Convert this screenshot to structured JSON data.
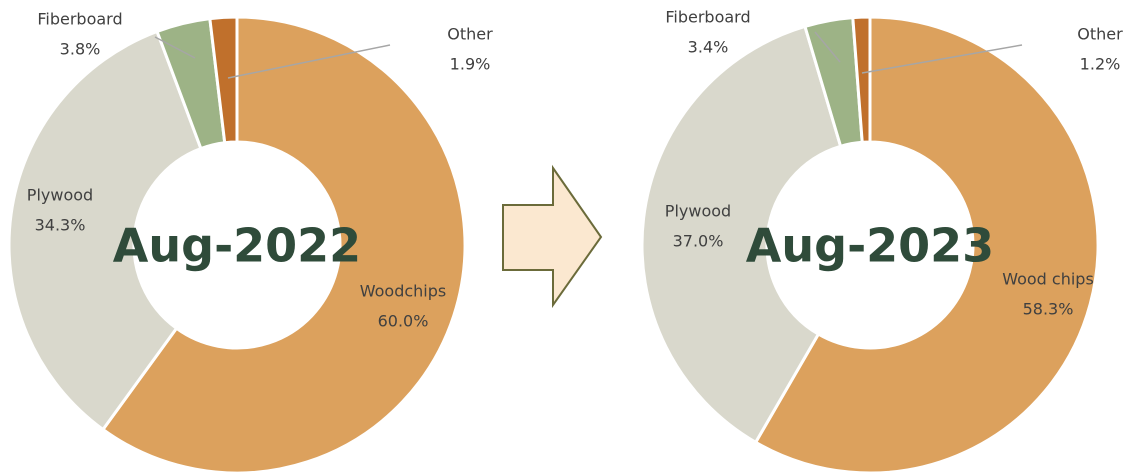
{
  "chart_data": [
    {
      "type": "pie",
      "title": "Aug-2022",
      "categories": [
        "Woodchips",
        "Plywood",
        "Fiberboard",
        "Other"
      ],
      "values": [
        60.0,
        34.3,
        3.8,
        1.9
      ],
      "value_labels": [
        "60.0%",
        "34.3%",
        "3.8%",
        "1.9%"
      ],
      "colors": [
        "#dca15d",
        "#d9d8cc",
        "#9db386",
        "#c0702c"
      ]
    },
    {
      "type": "pie",
      "title": "Aug-2023",
      "categories": [
        "Wood chips",
        "Plywood",
        "Fiberboard",
        "Other"
      ],
      "values": [
        58.3,
        37.0,
        3.4,
        1.2
      ],
      "value_labels": [
        "58.3%",
        "37.0%",
        "3.4%",
        "1.2%"
      ],
      "colors": [
        "#dca15d",
        "#d9d8cc",
        "#9db386",
        "#c0702c"
      ]
    }
  ]
}
